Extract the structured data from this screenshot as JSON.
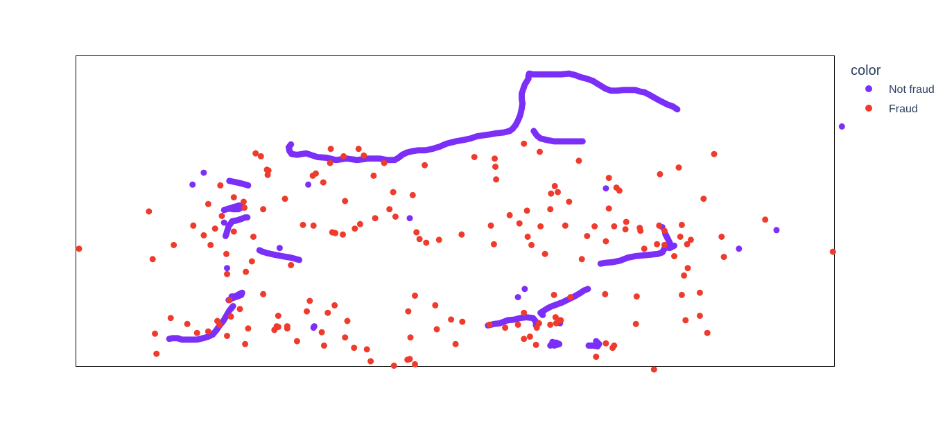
{
  "chart_data": {
    "type": "scatter",
    "title": "",
    "xlabel": "",
    "ylabel": "",
    "xlim": [
      0,
      1000
    ],
    "ylim": [
      0,
      400
    ],
    "grid": false,
    "axes_shown": false,
    "legend": {
      "title": "color",
      "placement": "right",
      "entries": [
        {
          "name": "Not fraud",
          "color": "#7b2ff7"
        },
        {
          "name": "Fraud",
          "color": "#ef3b2c"
        }
      ]
    },
    "not_fraud_segments": [
      [
        [
          293,
          265
        ],
        [
          282,
          262
        ],
        [
          270,
          260
        ],
        [
          260,
          258
        ],
        [
          251,
          256
        ],
        [
          244,
          254
        ],
        [
          240,
          252
        ]
      ],
      [
        [
          205,
          327
        ],
        [
          200,
          333
        ],
        [
          196,
          340
        ],
        [
          192,
          347
        ],
        [
          187,
          353
        ],
        [
          183,
          359
        ],
        [
          178,
          365
        ],
        [
          172,
          368
        ],
        [
          165,
          370
        ],
        [
          157,
          372
        ],
        [
          150,
          372
        ],
        [
          142,
          372
        ],
        [
          137,
          372
        ],
        [
          131,
          370
        ],
        [
          124,
          370
        ],
        [
          120,
          371
        ]
      ],
      [
        [
          199,
          319
        ],
        [
          205,
          316
        ],
        [
          211,
          314
        ],
        [
          216,
          312
        ],
        [
          217,
          309
        ],
        [
          213,
          311
        ],
        [
          208,
          314
        ],
        [
          203,
          314
        ]
      ],
      [
        [
          195,
          233
        ],
        [
          197,
          227
        ],
        [
          199,
          220
        ],
        [
          204,
          213
        ],
        [
          210,
          212
        ],
        [
          216,
          210
        ],
        [
          221,
          208
        ],
        [
          224,
          208
        ]
      ],
      [
        [
          193,
          198
        ],
        [
          200,
          196
        ],
        [
          206,
          194
        ],
        [
          213,
          192
        ],
        [
          217,
          194
        ],
        [
          212,
          197
        ],
        [
          205,
          197
        ],
        [
          199,
          196
        ]
      ],
      [
        [
          200,
          159
        ],
        [
          210,
          161
        ],
        [
          218,
          163
        ],
        [
          225,
          165
        ]
      ],
      [
        [
          283,
          123
        ],
        [
          290,
          124
        ],
        [
          302,
          122
        ],
        [
          317,
          127
        ],
        [
          330,
          128
        ],
        [
          342,
          131
        ],
        [
          356,
          129
        ],
        [
          370,
          131
        ],
        [
          385,
          129
        ],
        [
          400,
          129
        ],
        [
          410,
          131
        ],
        [
          420,
          131
        ],
        [
          425,
          128
        ],
        [
          430,
          124
        ],
        [
          436,
          121
        ],
        [
          444,
          119
        ],
        [
          451,
          118
        ],
        [
          461,
          118
        ],
        [
          470,
          116
        ],
        [
          480,
          113
        ],
        [
          489,
          109
        ],
        [
          501,
          106
        ],
        [
          512,
          104
        ],
        [
          521,
          102
        ],
        [
          530,
          99
        ],
        [
          544,
          97
        ],
        [
          556,
          95
        ],
        [
          565,
          94
        ],
        [
          573,
          92
        ],
        [
          577,
          89
        ],
        [
          581,
          84
        ],
        [
          584,
          78
        ],
        [
          587,
          71
        ],
        [
          589,
          62
        ],
        [
          590,
          55
        ],
        [
          589,
          49
        ],
        [
          589,
          42
        ],
        [
          591,
          36
        ],
        [
          593,
          30
        ],
        [
          596,
          25
        ],
        [
          598,
          22
        ],
        [
          598,
          18
        ],
        [
          599,
          15
        ],
        [
          604,
          16
        ],
        [
          612,
          16
        ],
        [
          622,
          16
        ],
        [
          632,
          16
        ],
        [
          642,
          16
        ],
        [
          652,
          15
        ],
        [
          660,
          17
        ],
        [
          668,
          20
        ],
        [
          676,
          22
        ],
        [
          684,
          25
        ],
        [
          692,
          30
        ],
        [
          700,
          35
        ],
        [
          708,
          38
        ],
        [
          716,
          38
        ],
        [
          724,
          37
        ],
        [
          732,
          37
        ],
        [
          740,
          37
        ],
        [
          746,
          39
        ],
        [
          752,
          40
        ],
        [
          758,
          43
        ],
        [
          765,
          47
        ],
        [
          772,
          51
        ],
        [
          778,
          54
        ],
        [
          784,
          57
        ],
        [
          790,
          59
        ],
        [
          796,
          63
        ]
      ],
      [
        [
          605,
          92
        ],
        [
          609,
          98
        ],
        [
          614,
          102
        ],
        [
          622,
          104
        ],
        [
          632,
          106
        ],
        [
          642,
          106
        ],
        [
          652,
          106
        ],
        [
          662,
          106
        ],
        [
          670,
          106
        ]
      ],
      [
        [
          283,
          123
        ],
        [
          280,
          119
        ],
        [
          279,
          114
        ],
        [
          282,
          110
        ]
      ],
      [
        [
          313,
          354
        ],
        [
          312,
          356
        ]
      ],
      [
        [
          544,
          353
        ],
        [
          552,
          351
        ],
        [
          560,
          350
        ],
        [
          570,
          346
        ],
        [
          580,
          345
        ],
        [
          587,
          343
        ],
        [
          595,
          342
        ],
        [
          604,
          343
        ],
        [
          608,
          348
        ],
        [
          608,
          353
        ]
      ],
      [
        [
          617,
          339
        ],
        [
          614,
          336
        ],
        [
          620,
          332
        ],
        [
          627,
          328
        ],
        [
          635,
          325
        ],
        [
          643,
          322
        ],
        [
          651,
          318
        ],
        [
          659,
          314
        ],
        [
          666,
          310
        ],
        [
          672,
          306
        ],
        [
          677,
          304
        ]
      ],
      [
        [
          694,
          270
        ],
        [
          700,
          269
        ],
        [
          710,
          268
        ],
        [
          720,
          266
        ],
        [
          730,
          262
        ],
        [
          740,
          260
        ],
        [
          750,
          259
        ],
        [
          760,
          258
        ],
        [
          770,
          257
        ],
        [
          776,
          255
        ],
        [
          780,
          248
        ],
        [
          786,
          249
        ],
        [
          792,
          246
        ]
      ],
      [
        [
          780,
          230
        ],
        [
          782,
          234
        ],
        [
          783,
          236
        ],
        [
          786,
          242
        ],
        [
          788,
          247
        ]
      ],
      [
        [
          627,
          380
        ],
        [
          631,
          376
        ],
        [
          635,
          376
        ],
        [
          639,
          378
        ],
        [
          632,
          380
        ],
        [
          630,
          375
        ]
      ],
      [
        [
          678,
          380
        ],
        [
          684,
          380
        ],
        [
          690,
          381
        ],
        [
          692,
          378
        ],
        [
          688,
          374
        ]
      ]
    ],
    "not_fraud_points": [
      [
        440,
        209
      ],
      [
        197,
        276
      ],
      [
        193,
        215
      ],
      [
        166,
        148
      ],
      [
        151,
        164
      ],
      [
        267,
        249
      ],
      [
        878,
        250
      ],
      [
        1015,
        86
      ],
      [
        928,
        225
      ],
      [
        776,
        221
      ],
      [
        305,
        164
      ],
      [
        701,
        169
      ],
      [
        640,
        350
      ],
      [
        584,
        315
      ],
      [
        593,
        304
      ]
    ],
    "fraud_points": [
      [
        0,
        250
      ],
      [
        290,
        374
      ],
      [
        383,
        385
      ],
      [
        440,
        398
      ],
      [
        592,
        336
      ],
      [
        612,
        350
      ],
      [
        635,
        350
      ],
      [
        688,
        395
      ],
      [
        741,
        351
      ],
      [
        807,
        346
      ],
      [
        1003,
        254
      ],
      [
        184,
        347
      ],
      [
        214,
        331
      ],
      [
        200,
        319
      ],
      [
        277,
        354
      ],
      [
        263,
        354
      ],
      [
        340,
        326
      ],
      [
        307,
        320
      ],
      [
        230,
        267
      ],
      [
        222,
        281
      ],
      [
        282,
        272
      ],
      [
        188,
        165
      ],
      [
        181,
        223
      ],
      [
        251,
        151
      ],
      [
        172,
        190
      ],
      [
        250,
        144
      ],
      [
        242,
        126
      ],
      [
        235,
        122
      ],
      [
        277,
        357
      ],
      [
        260,
        359
      ],
      [
        326,
        380
      ],
      [
        331,
        336
      ],
      [
        437,
        399
      ],
      [
        438,
        334
      ],
      [
        196,
        257
      ],
      [
        175,
        245
      ],
      [
        190,
        206
      ],
      [
        252,
        145
      ],
      [
        206,
        227
      ],
      [
        197,
        284
      ],
      [
        220,
        195
      ],
      [
        126,
        245
      ],
      [
        93,
        200
      ],
      [
        98,
        264
      ],
      [
        152,
        219
      ],
      [
        206,
        181
      ],
      [
        232,
        234
      ],
      [
        166,
        232
      ],
      [
        219,
        187
      ],
      [
        245,
        197
      ],
      [
        274,
        183
      ],
      [
        298,
        218
      ],
      [
        311,
        152
      ],
      [
        334,
        135
      ],
      [
        335,
        116
      ],
      [
        372,
        116
      ],
      [
        352,
        126
      ],
      [
        379,
        125
      ],
      [
        406,
        135
      ],
      [
        392,
        152
      ],
      [
        315,
        149
      ],
      [
        325,
        161
      ],
      [
        354,
        186
      ],
      [
        418,
        174
      ],
      [
        444,
        178
      ],
      [
        460,
        138
      ],
      [
        526,
        127
      ],
      [
        554,
        140
      ],
      [
        553,
        129
      ],
      [
        592,
        109
      ],
      [
        613,
        120
      ],
      [
        555,
        157
      ],
      [
        628,
        176
      ],
      [
        633,
        166
      ],
      [
        665,
        132
      ],
      [
        652,
        187
      ],
      [
        705,
        196
      ],
      [
        705,
        155
      ],
      [
        715,
        168
      ],
      [
        728,
        214
      ],
      [
        747,
        226
      ],
      [
        773,
        150
      ],
      [
        798,
        141
      ],
      [
        831,
        183
      ],
      [
        809,
        244
      ],
      [
        845,
        123
      ],
      [
        802,
        218
      ],
      [
        800,
        234
      ],
      [
        792,
        260
      ],
      [
        805,
        286
      ],
      [
        810,
        276
      ],
      [
        814,
        238
      ],
      [
        779,
        226
      ],
      [
        769,
        244
      ],
      [
        752,
        250
      ],
      [
        701,
        240
      ],
      [
        669,
        264
      ],
      [
        676,
        233
      ],
      [
        654,
        315
      ],
      [
        641,
        346
      ],
      [
        640,
        346
      ],
      [
        602,
        245
      ],
      [
        586,
        216
      ],
      [
        552,
        244
      ],
      [
        627,
        197
      ],
      [
        596,
        199
      ],
      [
        620,
        257
      ],
      [
        700,
        311
      ],
      [
        719,
        172
      ],
      [
        637,
        174
      ],
      [
        634,
        342
      ],
      [
        632,
        312
      ],
      [
        627,
        352
      ],
      [
        609,
        356
      ],
      [
        600,
        368
      ],
      [
        567,
        356
      ],
      [
        501,
        378
      ],
      [
        495,
        345
      ],
      [
        474,
        326
      ],
      [
        447,
        313
      ],
      [
        441,
        369
      ],
      [
        357,
        347
      ],
      [
        303,
        334
      ],
      [
        265,
        340
      ],
      [
        245,
        311
      ],
      [
        187,
        352
      ],
      [
        172,
        361
      ],
      [
        157,
        363
      ],
      [
        144,
        351
      ],
      [
        122,
        343
      ],
      [
        101,
        364
      ],
      [
        103,
        391
      ],
      [
        197,
        367
      ],
      [
        202,
        341
      ],
      [
        221,
        378
      ],
      [
        225,
        357
      ],
      [
        265,
        355
      ],
      [
        323,
        362
      ],
      [
        354,
        369
      ],
      [
        366,
        383
      ],
      [
        388,
        401
      ],
      [
        419,
        407
      ],
      [
        447,
        405
      ],
      [
        476,
        358
      ],
      [
        510,
        348
      ],
      [
        546,
        352
      ],
      [
        584,
        352
      ],
      [
        592,
        371
      ],
      [
        608,
        379
      ],
      [
        701,
        377
      ],
      [
        710,
        383
      ],
      [
        712,
        380
      ],
      [
        742,
        314
      ],
      [
        765,
        412
      ],
      [
        913,
        211
      ],
      [
        858,
        261
      ],
      [
        855,
        234
      ],
      [
        826,
        309
      ],
      [
        826,
        340
      ],
      [
        836,
        363
      ],
      [
        802,
        312
      ],
      [
        779,
        245
      ],
      [
        772,
        219
      ],
      [
        746,
        222
      ],
      [
        727,
        224
      ],
      [
        712,
        220
      ],
      [
        686,
        220
      ],
      [
        647,
        219
      ],
      [
        614,
        220
      ],
      [
        597,
        234
      ],
      [
        573,
        205
      ],
      [
        548,
        219
      ],
      [
        509,
        231
      ],
      [
        479,
        238
      ],
      [
        462,
        242
      ],
      [
        453,
        237
      ],
      [
        449,
        228
      ],
      [
        421,
        207
      ],
      [
        413,
        197
      ],
      [
        394,
        209
      ],
      [
        374,
        217
      ],
      [
        367,
        223
      ],
      [
        351,
        231
      ],
      [
        341,
        229
      ],
      [
        337,
        228
      ],
      [
        312,
        219
      ]
    ]
  }
}
